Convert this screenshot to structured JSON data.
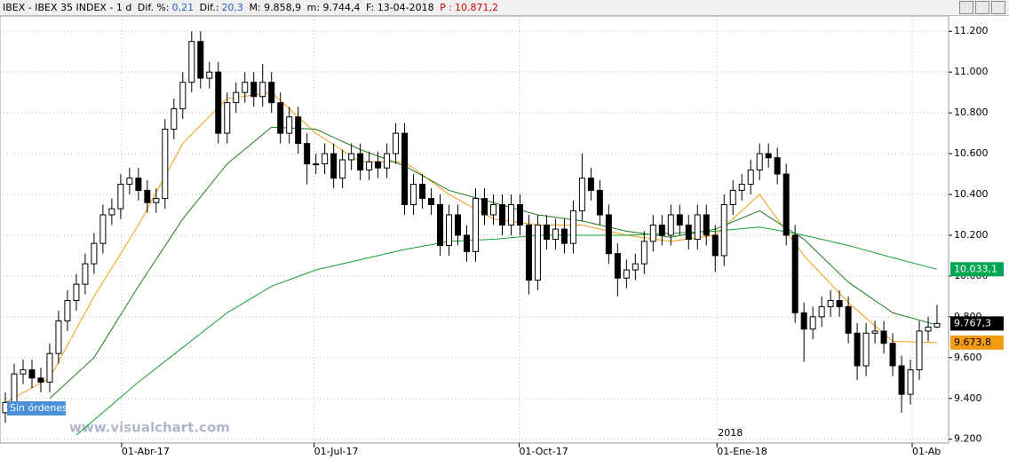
{
  "header": {
    "symbol": "IBEX - IBEX 35 INDEX - 1 d",
    "dif_pct_label": "Dif. %:",
    "dif_pct": "0,21",
    "dif_label": "Dif.:",
    "dif": "20,3",
    "max": "M: 9.858,9",
    "min": "m: 9.744,4",
    "date": "F: 13-04-2018",
    "p_label": "P :",
    "p": "10.871,2"
  },
  "chart_data": {
    "type": "candlestick",
    "watermark": "www.visualchart.com",
    "status": "Sin órdenes",
    "year_label": "2018",
    "xlim": [
      -0.6,
      106.3
    ],
    "ylim": [
      9190,
      11275
    ],
    "yticks": [
      {
        "value": 9200,
        "label": "9.200"
      },
      {
        "value": 9400,
        "label": "9.400"
      },
      {
        "value": 9600,
        "label": "9.600"
      },
      {
        "value": 9800,
        "label": "9.800"
      },
      {
        "value": 10000,
        "label": "10.000"
      },
      {
        "value": 10200,
        "label": "10.200"
      },
      {
        "value": 10400,
        "label": "10.400"
      },
      {
        "value": 10600,
        "label": "10.600"
      },
      {
        "value": 10800,
        "label": "10.800"
      },
      {
        "value": 11000,
        "label": "11.000"
      },
      {
        "value": 11200,
        "label": "11.200"
      }
    ],
    "xticks": [
      {
        "value": 13.1,
        "label": "01-Abr-17"
      },
      {
        "value": 34.8,
        "label": "01-Jul-17"
      },
      {
        "value": 57.9,
        "label": "01-Oct-17"
      },
      {
        "value": 80.2,
        "label": "01-Ene-18"
      },
      {
        "value": 102.2,
        "label": "01-Ab"
      }
    ],
    "open": [
      9330,
      9380,
      9520,
      9540,
      9500,
      9480,
      9620,
      9780,
      9880,
      9960,
      10060,
      10160,
      10300,
      10330,
      10450,
      10480,
      10420,
      10360,
      10380,
      10720,
      10820,
      10950,
      11150,
      10970,
      11000,
      10700,
      10850,
      10900,
      10950,
      10880,
      10950,
      10850,
      10700,
      10780,
      10650,
      10550,
      10550,
      10600,
      10480,
      10570,
      10600,
      10520,
      10560,
      10530,
      10600,
      10700,
      10350,
      10450,
      10380,
      10350,
      10150,
      10300,
      10200,
      10120,
      10380,
      10300,
      10350,
      10250,
      10350,
      10250,
      9980,
      10250,
      10180,
      10230,
      10160,
      10320,
      10480,
      10420,
      10300,
      10110,
      9990,
      10030,
      10060,
      10170,
      10250,
      10200,
      10300,
      10250,
      10180,
      10300,
      10200,
      10100,
      10350,
      10420,
      10450,
      10520,
      10600,
      10580,
      10500,
      10200,
      9820,
      9740,
      9800,
      9850,
      9880,
      9850,
      9720,
      9560,
      9720,
      9730,
      9670,
      9560,
      9420,
      9540,
      9730,
      9750
    ],
    "high": [
      9430,
      9570,
      9590,
      9590,
      9550,
      9670,
      9830,
      9930,
      10010,
      10110,
      10210,
      10350,
      10380,
      10500,
      10530,
      10530,
      10470,
      10430,
      10770,
      10870,
      11000,
      11200,
      11200,
      11050,
      11050,
      10900,
      10950,
      11000,
      11000,
      11040,
      11000,
      10900,
      10830,
      10830,
      10700,
      10600,
      10650,
      10650,
      10620,
      10650,
      10650,
      10610,
      10610,
      10650,
      10750,
      10750,
      10500,
      10500,
      10430,
      10400,
      10350,
      10350,
      10250,
      10430,
      10430,
      10400,
      10400,
      10400,
      10400,
      10300,
      10300,
      10300,
      10280,
      10280,
      10370,
      10600,
      10530,
      10470,
      10350,
      10160,
      10080,
      10110,
      10220,
      10300,
      10300,
      10350,
      10350,
      10300,
      10350,
      10350,
      10250,
      10400,
      10470,
      10500,
      10570,
      10650,
      10650,
      10630,
      10550,
      10250,
      9870,
      9850,
      9900,
      9930,
      9930,
      9900,
      9770,
      9770,
      9780,
      9780,
      9720,
      9610,
      9590,
      9780,
      9800,
      9858.9
    ],
    "low": [
      9280,
      9330,
      9470,
      9450,
      9430,
      9430,
      9570,
      9730,
      9830,
      9910,
      10010,
      10110,
      10250,
      10280,
      10400,
      10370,
      10310,
      10310,
      10330,
      10670,
      10770,
      10900,
      10920,
      10920,
      10650,
      10650,
      10800,
      10850,
      10830,
      10830,
      10800,
      10650,
      10650,
      10600,
      10450,
      10500,
      10500,
      10430,
      10430,
      10520,
      10470,
      10470,
      10480,
      10480,
      10550,
      10300,
      10300,
      10330,
      10300,
      10100,
      10100,
      10150,
      10070,
      10070,
      10250,
      10250,
      10200,
      10200,
      10200,
      9910,
      9930,
      10130,
      10130,
      10110,
      10110,
      10270,
      10370,
      10250,
      10060,
      9900,
      9940,
      9980,
      10010,
      10120,
      10150,
      10150,
      10200,
      10130,
      10130,
      10150,
      10020,
      10050,
      10300,
      10370,
      10400,
      10470,
      10530,
      10450,
      10150,
      9770,
      9580,
      9690,
      9750,
      9800,
      9800,
      9670,
      9490,
      9510,
      9670,
      9620,
      9510,
      9330,
      9370,
      9490,
      9680,
      9744.4
    ],
    "close": [
      9380,
      9520,
      9540,
      9500,
      9480,
      9620,
      9780,
      9880,
      9960,
      10060,
      10160,
      10300,
      10330,
      10450,
      10480,
      10420,
      10360,
      10380,
      10720,
      10820,
      10950,
      11150,
      10970,
      11000,
      10700,
      10850,
      10900,
      10950,
      10880,
      10950,
      10850,
      10700,
      10780,
      10650,
      10550,
      10550,
      10600,
      10480,
      10570,
      10600,
      10520,
      10560,
      10530,
      10600,
      10700,
      10350,
      10450,
      10380,
      10350,
      10150,
      10300,
      10200,
      10120,
      10380,
      10300,
      10350,
      10250,
      10350,
      10250,
      9980,
      10250,
      10180,
      10230,
      10160,
      10320,
      10480,
      10420,
      10300,
      10110,
      9990,
      10030,
      10060,
      10170,
      10250,
      10200,
      10300,
      10250,
      10180,
      10300,
      10200,
      10100,
      10350,
      10420,
      10450,
      10520,
      10600,
      10580,
      10500,
      10200,
      9820,
      9740,
      9800,
      9850,
      9880,
      9850,
      9720,
      9560,
      9720,
      9730,
      9670,
      9560,
      9420,
      9540,
      9730,
      9750,
      9767.3
    ],
    "averages": [
      {
        "color": "#f39c12",
        "x": [
          0,
          5,
          10,
          15,
          20,
          25,
          30,
          35,
          40,
          45,
          50,
          55,
          60,
          65,
          70,
          75,
          80,
          85,
          90,
          95,
          100,
          105
        ],
        "values": [
          9380,
          9500,
          9900,
          10250,
          10650,
          10870,
          10900,
          10700,
          10560,
          10560,
          10400,
          10280,
          10250,
          10250,
          10200,
          10170,
          10200,
          10400,
          10100,
          9870,
          9680,
          9673.8
        ]
      },
      {
        "color": "#1e7b1e",
        "x": [
          5,
          10,
          15,
          20,
          25,
          30,
          35,
          40,
          45,
          50,
          55,
          60,
          65,
          70,
          75,
          80,
          85,
          90,
          95,
          100,
          105
        ],
        "values": [
          9400,
          9600,
          9950,
          10280,
          10550,
          10730,
          10720,
          10620,
          10540,
          10420,
          10360,
          10300,
          10270,
          10220,
          10190,
          10230,
          10320,
          10180,
          9970,
          9820,
          9760
        ]
      },
      {
        "color": "#10a030",
        "x": [
          8,
          15,
          20,
          25,
          30,
          35,
          40,
          45,
          50,
          55,
          60,
          65,
          70,
          75,
          80,
          85,
          90,
          95,
          100,
          105
        ],
        "values": [
          9220,
          9480,
          9650,
          9820,
          9950,
          10030,
          10080,
          10130,
          10170,
          10180,
          10200,
          10200,
          10200,
          10210,
          10220,
          10240,
          10200,
          10150,
          10090,
          10033.1
        ]
      }
    ],
    "price_labels": [
      {
        "value": 10033.1,
        "label": "10.033,1",
        "color": "#00a651",
        "text_color": "#ffffff"
      },
      {
        "value": 9767.3,
        "label": "9.767,3",
        "color": "#000000",
        "text_color": "#ffffff"
      },
      {
        "value": 9673.8,
        "label": "9.673,8",
        "color": "#f39c12",
        "text_color": "#000000"
      }
    ]
  }
}
